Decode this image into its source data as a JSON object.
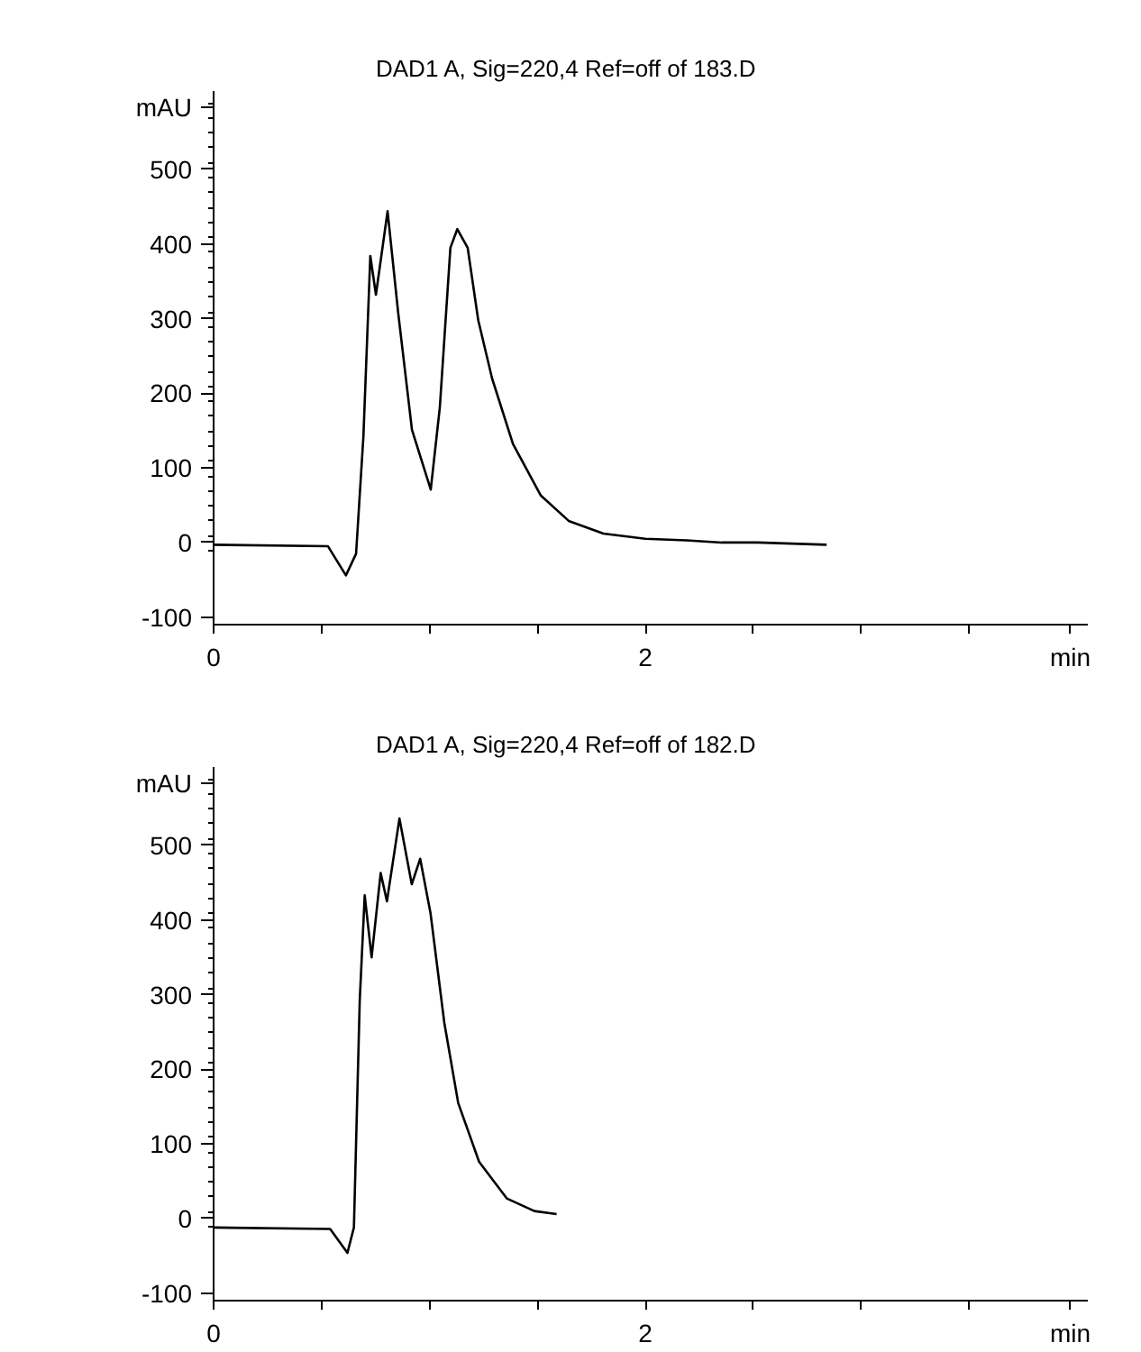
{
  "chart_data": [
    {
      "type": "line",
      "title": "DAD1 A, Sig=220,4 Ref=off of 183.D",
      "xlabel": "min",
      "ylabel": "mAU",
      "x": [
        0,
        0.53,
        0.613,
        0.66,
        0.694,
        0.726,
        0.752,
        0.806,
        0.855,
        0.919,
        1.006,
        1.048,
        1.097,
        1.129,
        1.177,
        1.226,
        1.29,
        1.387,
        1.516,
        1.645,
        1.806,
        2.0,
        2.19,
        2.355,
        2.52,
        2.84
      ],
      "series": [
        {
          "color": "#000000",
          "values": [
            -3,
            -5,
            -44,
            -15,
            142,
            384,
            332,
            444,
            308,
            151,
            71,
            181,
            395,
            420,
            395,
            298,
            220,
            132,
            63,
            29,
            12,
            5,
            3,
            0,
            0,
            -3
          ]
        }
      ],
      "xlim": [
        0,
        4.05
      ],
      "ylim": [
        -110,
        605
      ],
      "xticks": [
        0,
        {
          "value": 0.5,
          "label": null
        },
        {
          "value": 1,
          "label": null
        },
        {
          "value": 1.5,
          "label": null
        },
        2,
        {
          "value": 2.5,
          "label": null
        },
        {
          "value": 3,
          "label": null
        },
        {
          "value": 3.5,
          "label": null
        }
      ],
      "yticks": [
        -100,
        0,
        100,
        200,
        300,
        400,
        500
      ],
      "grid": false,
      "line_style": "solid"
    },
    {
      "type": "line",
      "title": "DAD1 A, Sig=220,4 Ref=off of 182.D",
      "xlabel": "min",
      "ylabel": "mAU",
      "x": [
        0,
        0.54,
        0.62,
        0.65,
        0.677,
        0.7,
        0.732,
        0.774,
        0.803,
        0.861,
        0.918,
        0.957,
        1.005,
        1.069,
        1.133,
        1.23,
        1.358,
        1.486,
        1.589
      ],
      "series": [
        {
          "color": "#000000",
          "values": [
            -12,
            -14,
            -46,
            -12,
            292,
            433,
            350,
            463,
            425,
            536,
            448,
            482,
            409,
            262,
            155,
            76,
            27,
            10,
            6
          ]
        }
      ],
      "xlim": [
        0,
        4.05
      ],
      "ylim": [
        -110,
        605
      ],
      "xticks": [
        0,
        {
          "value": 0.5,
          "label": null
        },
        {
          "value": 1,
          "label": null
        },
        {
          "value": 1.5,
          "label": null
        },
        2,
        {
          "value": 2.5,
          "label": null
        },
        {
          "value": 3,
          "label": null
        },
        {
          "value": 3.5,
          "label": null
        }
      ],
      "yticks": [
        -100,
        0,
        100,
        200,
        300,
        400,
        500
      ],
      "grid": false,
      "line_style": "solid"
    }
  ]
}
